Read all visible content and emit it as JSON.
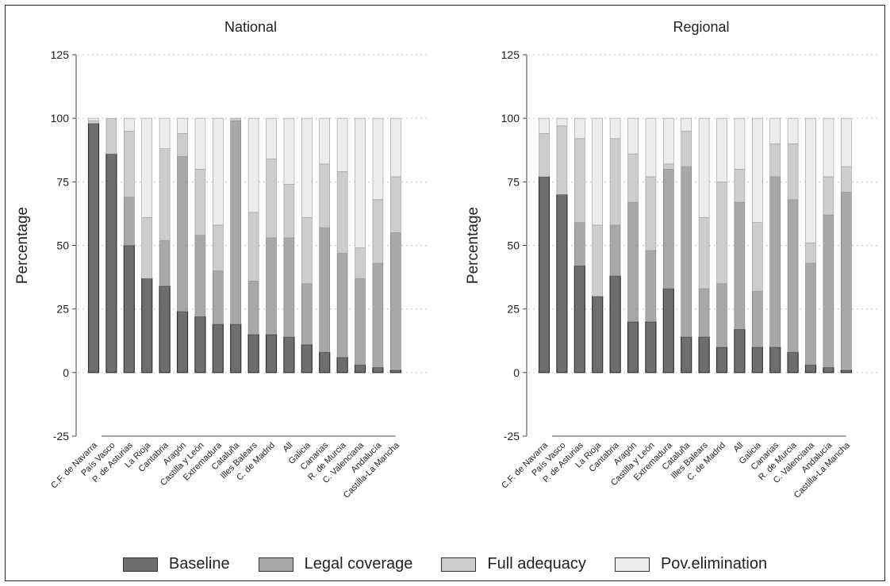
{
  "chart_data": [
    {
      "type": "bar",
      "stacked": true,
      "title": "National",
      "ylabel": "Percentage",
      "ylim": [
        -25,
        125
      ],
      "yticks": [
        -25,
        0,
        25,
        50,
        75,
        100,
        125
      ],
      "grid": "horizontal dotted",
      "categories": [
        "C.F. de Navarra",
        "País Vasco",
        "P. de Asturias",
        "La Rioja",
        "Cantabria",
        "Aragón",
        "Castilla y León",
        "Extremadura",
        "Cataluña",
        "Illes Balears",
        "C. de Madrid",
        "All",
        "Galicia",
        "Canarias",
        "R. de Murcia",
        "C. Valenciana",
        "Andalucía",
        "Castilla-La Mancha"
      ],
      "series": [
        {
          "name": "Baseline",
          "values": [
            98,
            86,
            50,
            37,
            34,
            24,
            22,
            19,
            19,
            15,
            15,
            14,
            11,
            8,
            6,
            3,
            2,
            1
          ]
        },
        {
          "name": "Legal coverage",
          "values": [
            0,
            0,
            19,
            0,
            18,
            61,
            32,
            21,
            80,
            21,
            38,
            39,
            24,
            49,
            41,
            34,
            41,
            54
          ]
        },
        {
          "name": "Full adequacy",
          "values": [
            1,
            14,
            26,
            24,
            36,
            9,
            26,
            18,
            1,
            27,
            31,
            21,
            26,
            25,
            32,
            12,
            25,
            22
          ]
        },
        {
          "name": "Pov.elimination",
          "values": [
            1,
            0,
            5,
            39,
            12,
            6,
            20,
            42,
            0,
            37,
            16,
            26,
            39,
            18,
            21,
            51,
            32,
            23
          ]
        }
      ]
    },
    {
      "type": "bar",
      "stacked": true,
      "title": "Regional",
      "ylabel": "Percentage",
      "ylim": [
        -25,
        125
      ],
      "yticks": [
        -25,
        0,
        25,
        50,
        75,
        100,
        125
      ],
      "grid": "horizontal dotted",
      "categories": [
        "C.F. de Navarra",
        "País Vasco",
        "P. de Asturias",
        "La Rioja",
        "Cantabria",
        "Aragón",
        "Castilla y León",
        "Extremadura",
        "Cataluña",
        "Illes Balears",
        "C. de Madrid",
        "All",
        "Galicia",
        "Canarias",
        "R. de Murcia",
        "C. Valenciana",
        "Andalucía",
        "Castilla-La Mancha"
      ],
      "series": [
        {
          "name": "Baseline",
          "values": [
            77,
            70,
            42,
            30,
            38,
            20,
            20,
            33,
            14,
            14,
            10,
            17,
            10,
            10,
            8,
            3,
            2,
            1
          ]
        },
        {
          "name": "Legal coverage",
          "values": [
            0,
            0,
            17,
            0,
            20,
            47,
            28,
            47,
            67,
            19,
            25,
            50,
            22,
            67,
            60,
            40,
            60,
            70
          ]
        },
        {
          "name": "Full adequacy",
          "values": [
            17,
            27,
            33,
            28,
            34,
            19,
            29,
            2,
            14,
            28,
            40,
            13,
            27,
            13,
            22,
            8,
            15,
            10
          ]
        },
        {
          "name": "Pov.elimination",
          "values": [
            6,
            3,
            8,
            42,
            8,
            14,
            23,
            18,
            5,
            39,
            25,
            20,
            41,
            10,
            10,
            49,
            23,
            19
          ]
        }
      ]
    }
  ],
  "colors": {
    "Baseline": "#6e6e6e",
    "Legal coverage": "#a8a8a8",
    "Full adequacy": "#cdcdcd",
    "Pov.elimination": "#ececec"
  },
  "legend": {
    "items": [
      {
        "label": "Baseline",
        "color": "#6e6e6e"
      },
      {
        "label": "Legal coverage",
        "color": "#a8a8a8"
      },
      {
        "label": "Full adequacy",
        "color": "#cdcdcd"
      },
      {
        "label": "Pov.elimination",
        "color": "#ececec"
      }
    ]
  }
}
